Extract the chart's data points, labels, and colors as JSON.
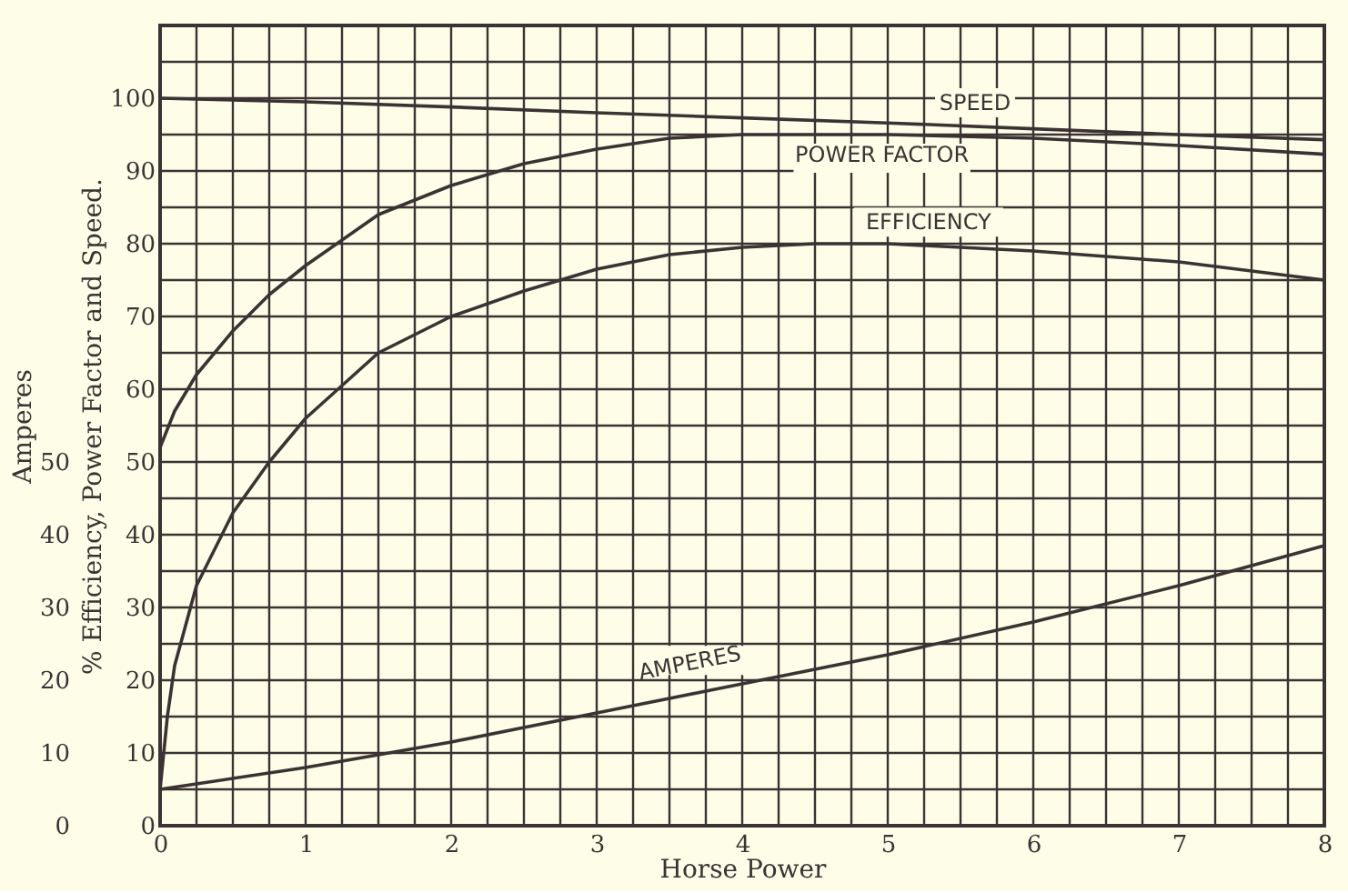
{
  "chart_data": {
    "type": "line",
    "xlabel": "Horse Power",
    "ylabel": "% Efficiency, Power Factor and Speed.",
    "y2label": "Amperes",
    "xlim": [
      0,
      8
    ],
    "ylim": [
      0,
      110
    ],
    "y2lim": [
      0,
      110
    ],
    "xticks": [
      0,
      {
        "value": 0.25,
        "label": null
      },
      {
        "value": 0.5,
        "label": null
      },
      {
        "value": 0.75,
        "label": null
      },
      1,
      {
        "value": 1.25,
        "label": null
      },
      {
        "value": 1.5,
        "label": null
      },
      {
        "value": 1.75,
        "label": null
      },
      2,
      {
        "value": 2.25,
        "label": null
      },
      {
        "value": 2.5,
        "label": null
      },
      {
        "value": 2.75,
        "label": null
      },
      3,
      {
        "value": 3.25,
        "label": null
      },
      {
        "value": 3.5,
        "label": null
      },
      {
        "value": 3.75,
        "label": null
      },
      4,
      {
        "value": 4.25,
        "label": null
      },
      {
        "value": 4.5,
        "label": null
      },
      {
        "value": 4.75,
        "label": null
      },
      5,
      {
        "value": 5.25,
        "label": null
      },
      {
        "value": 5.5,
        "label": null
      },
      {
        "value": 5.75,
        "label": null
      },
      6,
      {
        "value": 6.25,
        "label": null
      },
      {
        "value": 6.5,
        "label": null
      },
      {
        "value": 6.75,
        "label": null
      },
      7,
      {
        "value": 7.25,
        "label": null
      },
      {
        "value": 7.5,
        "label": null
      },
      {
        "value": 7.75,
        "label": null
      },
      8
    ],
    "yticks": [
      0,
      {
        "value": 5,
        "label": null
      },
      10,
      {
        "value": 15,
        "label": null
      },
      20,
      {
        "value": 25,
        "label": null
      },
      30,
      {
        "value": 35,
        "label": null
      },
      40,
      {
        "value": 45,
        "label": null
      },
      50,
      {
        "value": 55,
        "label": null
      },
      60,
      {
        "value": 65,
        "label": null
      },
      70,
      {
        "value": 75,
        "label": null
      },
      80,
      {
        "value": 85,
        "label": null
      },
      90,
      {
        "value": 95,
        "label": null
      },
      100,
      {
        "value": 105,
        "label": null
      },
      {
        "value": 110,
        "label": null
      }
    ],
    "y2ticks": [
      0,
      10,
      20,
      30,
      40,
      50
    ],
    "grid": true,
    "marker": "none",
    "line_style": "solid",
    "series": [
      {
        "name": "SPEED",
        "color": "#3b3333",
        "x": [
          0,
          1,
          2,
          3,
          4,
          5,
          6,
          7,
          8
        ],
        "values": [
          100,
          99.5,
          98.8,
          98,
          97.3,
          96.6,
          95.8,
          95,
          94.3
        ]
      },
      {
        "name": "POWER FACTOR",
        "color": "#3b3333",
        "x": [
          0,
          0.1,
          0.25,
          0.5,
          0.75,
          1,
          1.5,
          2,
          2.5,
          3,
          3.5,
          4,
          5,
          6,
          7,
          8
        ],
        "values": [
          52,
          57,
          62,
          68,
          73,
          77,
          84,
          88,
          91,
          93,
          94.5,
          95,
          95,
          94.5,
          93.5,
          92.3
        ]
      },
      {
        "name": "EFFICIENCY",
        "color": "#3b3333",
        "x": [
          0,
          0.05,
          0.1,
          0.25,
          0.5,
          0.75,
          1,
          1.5,
          2,
          2.5,
          3,
          3.5,
          4,
          4.5,
          5,
          6,
          7,
          8
        ],
        "values": [
          5,
          15,
          22,
          33,
          43,
          50,
          56,
          65,
          70,
          73.5,
          76.5,
          78.5,
          79.5,
          80,
          80,
          79,
          77.5,
          75
        ]
      },
      {
        "name": "AMPERES",
        "color": "#3b3333",
        "axis": "y2",
        "x": [
          0,
          1,
          2,
          3,
          4,
          5,
          6,
          7,
          8
        ],
        "values": [
          5,
          8,
          11.5,
          15.5,
          19.5,
          23.5,
          28,
          33,
          38.5
        ]
      }
    ]
  }
}
